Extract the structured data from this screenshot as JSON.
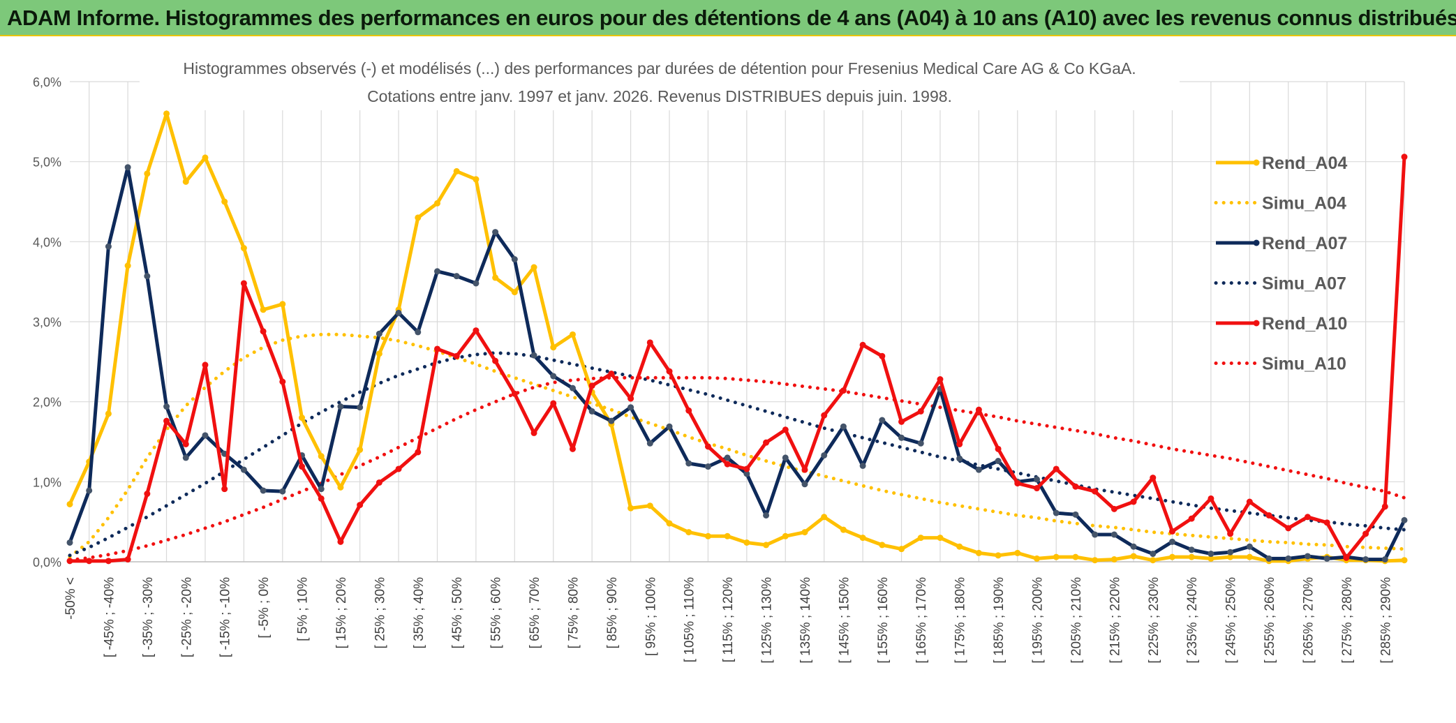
{
  "header": {
    "title": "ADAM Informe. Histogrammes des performances en euros pour des détentions de 4 ans (A04) à 10 ans (A10) avec les revenus connus distribués"
  },
  "chart_data": {
    "type": "line",
    "title": "Histogrammes observés (-) et modélisés (...) des performances par durées de détention pour Fresenius Medical Care AG & Co KGaA.",
    "subtitle": "Cotations entre janv. 1997 et janv. 2026. Revenus DISTRIBUES depuis juin. 1998.",
    "xlabel": "",
    "ylabel": "",
    "ylim": [
      0,
      6
    ],
    "y_ticks": [
      "0,0%",
      "1,0%",
      "2,0%",
      "3,0%",
      "4,0%",
      "5,0%",
      "6,0%"
    ],
    "x_tick_labels": [
      "-50% <",
      "[ -45% ; -40%",
      "[ -35% ; -30%",
      "[ -25% ; -20%",
      "[ -15% ; -10%",
      "[ -5% ; 0%",
      "[ 5% ; 10%",
      "[ 15% ; 20%",
      "[ 25% ; 30%",
      "[ 35% ; 40%",
      "[ 45% ; 50%",
      "[ 55% ; 60%",
      "[ 65% ; 70%",
      "[ 75% ; 80%",
      "[ 85% ; 90%",
      "[ 95% ; 100%",
      "[ 105% ; 110%",
      "[ 115% ; 120%",
      "[ 125% ; 130%",
      "[ 135% ; 140%",
      "[ 145% ; 150%",
      "[ 155% ; 160%",
      "[ 165% ; 170%",
      "[ 175% ; 180%",
      "[ 185% ; 190%",
      "[ 195% ; 200%",
      "[ 205% ; 210%",
      "[ 215% ; 220%",
      "[ 225% ; 230%",
      "[ 235% ; 240%",
      "[ 245% ; 250%",
      "[ 255% ; 260%",
      "[ 265% ; 270%",
      "[ 275% ; 280%",
      "[ 285% ; 290%"
    ],
    "grid": true,
    "legend_position": "right",
    "colors": {
      "A04": "#ffc000",
      "A07": "#0e2a5a",
      "A10": "#f01010"
    },
    "series": [
      {
        "name": "Rend_A04",
        "style": "solid-markers",
        "color": "#ffc000",
        "values": [
          0.72,
          1.25,
          1.85,
          3.7,
          4.85,
          5.6,
          4.75,
          5.05,
          4.5,
          3.92,
          3.15,
          3.22,
          1.8,
          1.32,
          0.93,
          1.4,
          2.6,
          3.15,
          4.3,
          4.48,
          4.88,
          4.78,
          3.55,
          3.37,
          3.68,
          2.68,
          2.84,
          2.12,
          1.72,
          0.67,
          0.7,
          0.48,
          0.37,
          0.32,
          0.32,
          0.24,
          0.21,
          0.32,
          0.37,
          0.56,
          0.4,
          0.3,
          0.21,
          0.16,
          0.3,
          0.3,
          0.19,
          0.11,
          0.08,
          0.11,
          0.04,
          0.06,
          0.06,
          0.02,
          0.03,
          0.07,
          0.02,
          0.06,
          0.06,
          0.04,
          0.06,
          0.06,
          0.01,
          0.01,
          0.04,
          0.06,
          0.02,
          0.02,
          0.01,
          0.02
        ]
      },
      {
        "name": "Simu_A04",
        "style": "dotted",
        "color": "#ffc000",
        "values": [
          0.06,
          0.25,
          0.55,
          0.9,
          1.3,
          1.65,
          1.95,
          2.18,
          2.38,
          2.55,
          2.68,
          2.77,
          2.82,
          2.84,
          2.84,
          2.82,
          2.8,
          2.76,
          2.7,
          2.63,
          2.55,
          2.47,
          2.38,
          2.3,
          2.22,
          2.14,
          2.06,
          1.98,
          1.9,
          1.81,
          1.73,
          1.65,
          1.56,
          1.48,
          1.41,
          1.33,
          1.26,
          1.19,
          1.13,
          1.07,
          1.01,
          0.95,
          0.89,
          0.84,
          0.79,
          0.74,
          0.7,
          0.66,
          0.62,
          0.58,
          0.55,
          0.51,
          0.48,
          0.45,
          0.43,
          0.4,
          0.37,
          0.35,
          0.33,
          0.31,
          0.29,
          0.27,
          0.25,
          0.24,
          0.22,
          0.21,
          0.19,
          0.18,
          0.17,
          0.16
        ]
      },
      {
        "name": "Rend_A07",
        "style": "solid-markers",
        "color": "#0e2a5a",
        "values": [
          0.24,
          0.89,
          3.94,
          4.93,
          3.57,
          1.94,
          1.3,
          1.58,
          1.35,
          1.15,
          0.89,
          0.88,
          1.33,
          0.91,
          1.94,
          1.93,
          2.85,
          3.11,
          2.87,
          3.63,
          3.57,
          3.48,
          4.12,
          3.78,
          2.58,
          2.32,
          2.17,
          1.88,
          1.76,
          1.93,
          1.48,
          1.69,
          1.23,
          1.19,
          1.3,
          1.1,
          0.58,
          1.3,
          0.97,
          1.33,
          1.69,
          1.2,
          1.77,
          1.55,
          1.48,
          2.16,
          1.29,
          1.15,
          1.26,
          1.0,
          1.03,
          0.61,
          0.59,
          0.34,
          0.34,
          0.19,
          0.1,
          0.25,
          0.15,
          0.1,
          0.12,
          0.19,
          0.04,
          0.04,
          0.07,
          0.04,
          0.06,
          0.03,
          0.03,
          0.52
        ]
      },
      {
        "name": "Simu_A07",
        "style": "dotted",
        "color": "#0e2a5a",
        "values": [
          0.08,
          0.18,
          0.3,
          0.43,
          0.56,
          0.7,
          0.84,
          0.98,
          1.13,
          1.28,
          1.43,
          1.58,
          1.73,
          1.87,
          2.0,
          2.12,
          2.23,
          2.33,
          2.41,
          2.49,
          2.55,
          2.59,
          2.61,
          2.6,
          2.57,
          2.52,
          2.47,
          2.42,
          2.37,
          2.32,
          2.27,
          2.21,
          2.15,
          2.09,
          2.02,
          1.95,
          1.88,
          1.81,
          1.74,
          1.67,
          1.61,
          1.55,
          1.49,
          1.43,
          1.37,
          1.31,
          1.26,
          1.21,
          1.16,
          1.11,
          1.06,
          1.01,
          0.96,
          0.91,
          0.87,
          0.83,
          0.79,
          0.75,
          0.71,
          0.67,
          0.64,
          0.61,
          0.58,
          0.55,
          0.52,
          0.5,
          0.47,
          0.45,
          0.42,
          0.4
        ]
      },
      {
        "name": "Rend_A10",
        "style": "solid-markers",
        "color": "#f01010",
        "values": [
          0.01,
          0.01,
          0.01,
          0.03,
          0.85,
          1.76,
          1.47,
          2.46,
          0.91,
          3.48,
          2.88,
          2.25,
          1.19,
          0.79,
          0.25,
          0.71,
          0.99,
          1.16,
          1.37,
          2.66,
          2.57,
          2.89,
          2.51,
          2.1,
          1.61,
          1.98,
          1.41,
          2.2,
          2.35,
          2.04,
          2.74,
          2.38,
          1.89,
          1.44,
          1.22,
          1.16,
          1.49,
          1.65,
          1.15,
          1.83,
          2.14,
          2.71,
          2.57,
          1.75,
          1.88,
          2.28,
          1.47,
          1.9,
          1.41,
          0.98,
          0.92,
          1.16,
          0.94,
          0.88,
          0.66,
          0.75,
          1.05,
          0.38,
          0.54,
          0.79,
          0.35,
          0.75,
          0.58,
          0.42,
          0.56,
          0.49,
          0.05,
          0.35,
          0.69,
          5.06
        ]
      },
      {
        "name": "Simu_A10",
        "style": "dotted",
        "color": "#f01010",
        "values": [
          0.02,
          0.05,
          0.09,
          0.14,
          0.2,
          0.27,
          0.34,
          0.42,
          0.5,
          0.59,
          0.68,
          0.78,
          0.88,
          0.98,
          1.09,
          1.2,
          1.31,
          1.43,
          1.55,
          1.67,
          1.79,
          1.9,
          2.0,
          2.1,
          2.18,
          2.24,
          2.27,
          2.29,
          2.3,
          2.3,
          2.3,
          2.3,
          2.3,
          2.3,
          2.29,
          2.27,
          2.25,
          2.22,
          2.19,
          2.16,
          2.13,
          2.09,
          2.05,
          2.01,
          1.97,
          1.93,
          1.89,
          1.85,
          1.81,
          1.76,
          1.72,
          1.68,
          1.64,
          1.6,
          1.55,
          1.51,
          1.46,
          1.41,
          1.37,
          1.33,
          1.29,
          1.24,
          1.19,
          1.14,
          1.09,
          1.04,
          0.98,
          0.93,
          0.88,
          0.8
        ]
      }
    ]
  }
}
